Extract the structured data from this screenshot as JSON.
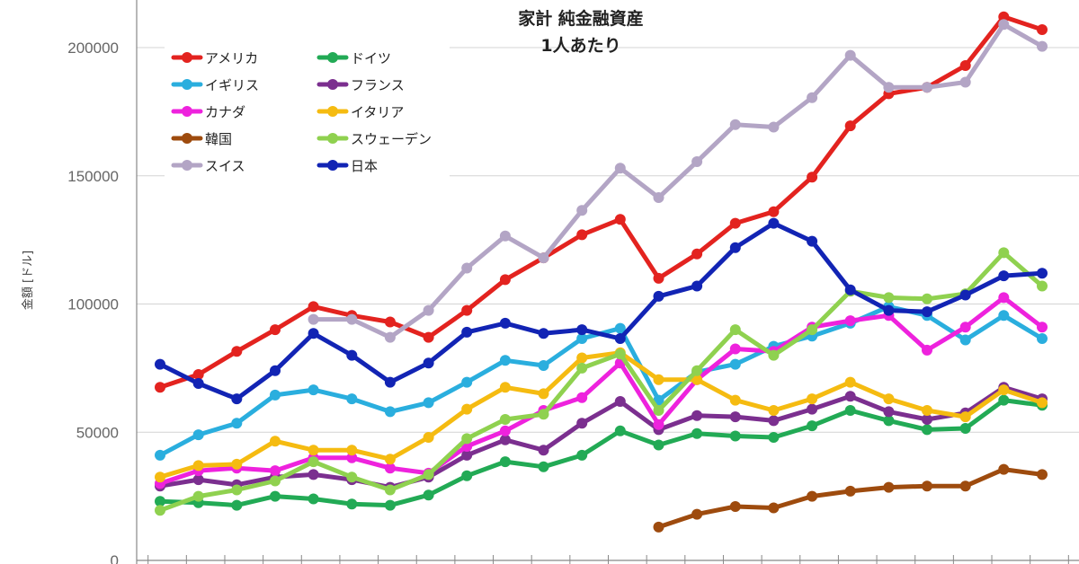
{
  "chart_data": {
    "type": "line",
    "title_lines": [
      "家計 純金融資産",
      "1人あたり"
    ],
    "ylabel": "金額 [ドル]",
    "ylim": [
      0,
      220000
    ],
    "yticks": [
      0,
      50000,
      100000,
      150000,
      200000
    ],
    "ytick_labels": [
      "0",
      "50000",
      "100000",
      "150000",
      "200000"
    ],
    "grid": true,
    "legend_position": "top-left",
    "points_count": 24,
    "series": [
      {
        "name": "アメリカ",
        "color": "#e3231f",
        "values": [
          67500,
          72500,
          81500,
          90000,
          99000,
          95500,
          93000,
          87000,
          97500,
          109500,
          118000,
          127000,
          133000,
          110000,
          119500,
          131500,
          136000,
          149500,
          169500,
          182000,
          184500,
          193000,
          212000,
          207000
        ]
      },
      {
        "name": "ドイツ",
        "color": "#22aa55",
        "values": [
          23000,
          22500,
          21500,
          25000,
          24000,
          22000,
          21500,
          25500,
          33000,
          38500,
          36500,
          41000,
          50500,
          45000,
          49500,
          48500,
          48000,
          52500,
          58500,
          54500,
          51000,
          51500,
          62500,
          60500
        ]
      },
      {
        "name": "イギリス",
        "color": "#2aaede",
        "values": [
          41000,
          49000,
          53500,
          64500,
          66500,
          63000,
          58000,
          61500,
          69500,
          78000,
          76000,
          86500,
          90500,
          62500,
          73500,
          76500,
          83500,
          87500,
          92500,
          99000,
          95500,
          86000,
          95500,
          86500
        ]
      },
      {
        "name": "フランス",
        "color": "#7b2f8f",
        "values": [
          29000,
          31500,
          29500,
          32500,
          33500,
          31500,
          28500,
          32500,
          41000,
          47000,
          43000,
          53500,
          62000,
          51000,
          56500,
          56000,
          54500,
          59000,
          64000,
          58000,
          55000,
          57500,
          67500,
          63000
        ]
      },
      {
        "name": "カナダ",
        "color": "#ee22dd",
        "values": [
          30000,
          35000,
          36000,
          35000,
          40000,
          40000,
          36000,
          34000,
          44500,
          50500,
          58500,
          63500,
          77000,
          53000,
          70500,
          82500,
          81500,
          91000,
          93500,
          95500,
          82000,
          91000,
          102500,
          91000
        ]
      },
      {
        "name": "イタリア",
        "color": "#f5bb11",
        "values": [
          32500,
          37000,
          37500,
          46500,
          43000,
          43000,
          39500,
          48000,
          59000,
          67500,
          65000,
          79000,
          81000,
          70500,
          70500,
          62500,
          58500,
          63000,
          69500,
          63000,
          58500,
          56000,
          66500,
          61500
        ]
      },
      {
        "name": "韓国",
        "color": "#9e4b0e",
        "values": [
          null,
          null,
          null,
          null,
          null,
          null,
          null,
          null,
          null,
          null,
          null,
          null,
          null,
          13000,
          18000,
          21000,
          20500,
          25000,
          27000,
          28500,
          29000,
          29000,
          35500,
          33500
        ]
      },
      {
        "name": "スウェーデン",
        "color": "#8fd14f",
        "values": [
          19500,
          25000,
          27500,
          31000,
          38500,
          32500,
          27500,
          33500,
          47500,
          55000,
          57000,
          75000,
          80500,
          58500,
          74000,
          90000,
          80000,
          90000,
          105000,
          102500,
          102000,
          104000,
          120000,
          107000
        ]
      },
      {
        "name": "スイス",
        "color": "#b3a5c5",
        "values": [
          null,
          null,
          null,
          null,
          94000,
          94000,
          87000,
          97500,
          114000,
          126500,
          118000,
          136500,
          153000,
          141500,
          155500,
          170000,
          169000,
          180500,
          197000,
          184500,
          184500,
          186500,
          209000,
          200500
        ]
      },
      {
        "name": "日本",
        "color": "#1224b4",
        "values": [
          76500,
          69000,
          63000,
          74000,
          88500,
          80000,
          69500,
          77000,
          89000,
          92500,
          88500,
          90000,
          86500,
          103000,
          107000,
          122000,
          131500,
          124500,
          105500,
          97500,
          97000,
          103500,
          111000,
          112000
        ]
      }
    ]
  }
}
